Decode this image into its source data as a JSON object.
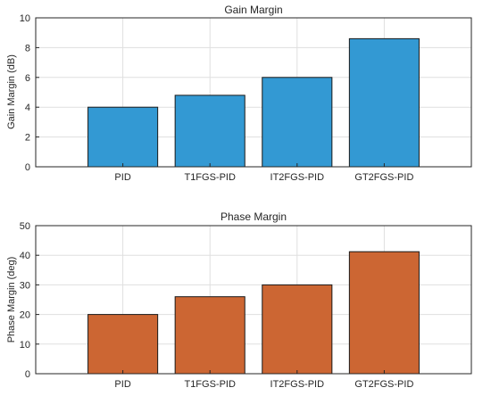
{
  "chart_data": [
    {
      "type": "bar",
      "title": "Gain Margin",
      "xlabel": "",
      "ylabel": "Gain Margin (dB)",
      "categories": [
        "PID",
        "T1FGS-PID",
        "IT2FGS-PID",
        "GT2FGS-PID"
      ],
      "values": [
        4.0,
        4.8,
        6.0,
        8.6
      ],
      "ylim": [
        0,
        10
      ],
      "yticks": [
        "0",
        "2",
        "4",
        "6",
        "8",
        "10"
      ],
      "grid": true,
      "color": "#3399d3"
    },
    {
      "type": "bar",
      "title": "Phase Margin",
      "xlabel": "",
      "ylabel": "Phase Margin (deg)",
      "categories": [
        "PID",
        "T1FGS-PID",
        "IT2FGS-PID",
        "GT2FGS-PID"
      ],
      "values": [
        20,
        26,
        30,
        41.2
      ],
      "ylim": [
        0,
        50
      ],
      "yticks": [
        "0",
        "10",
        "20",
        "30",
        "40",
        "50"
      ],
      "grid": true,
      "color": "#cc6633"
    }
  ]
}
